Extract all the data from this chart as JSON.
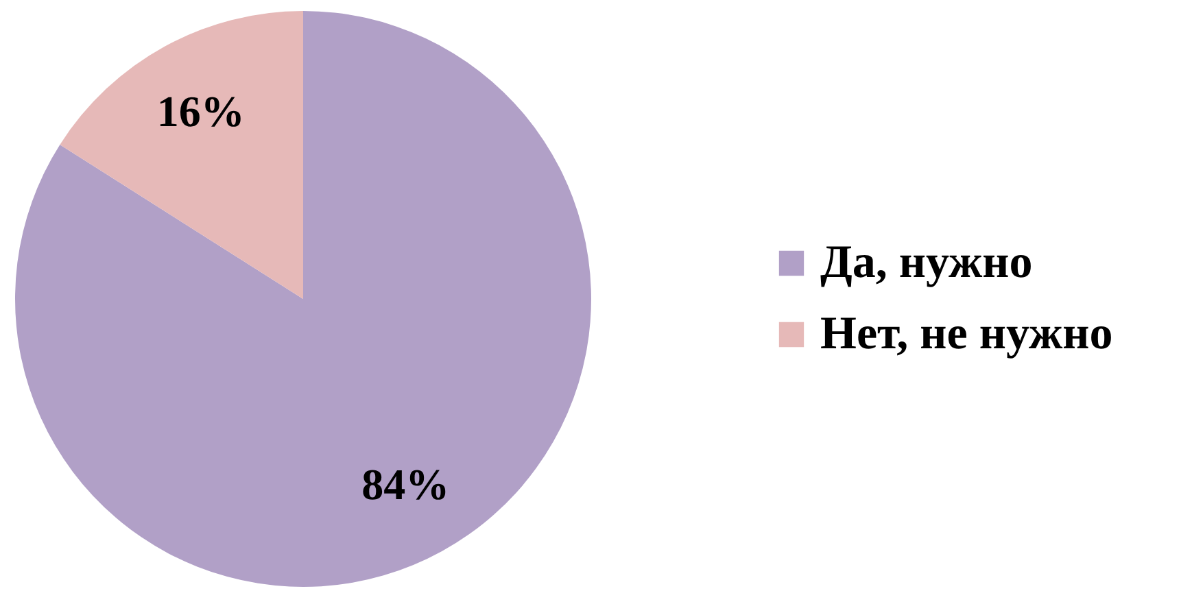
{
  "chart_data": {
    "type": "pie",
    "categories": [
      "Да, нужно",
      "Нет, не нужно"
    ],
    "values": [
      84,
      16
    ],
    "value_labels": [
      "84%",
      "16%"
    ],
    "colors": [
      "#b1a0c7",
      "#e6b9b8"
    ],
    "legend": "right"
  }
}
